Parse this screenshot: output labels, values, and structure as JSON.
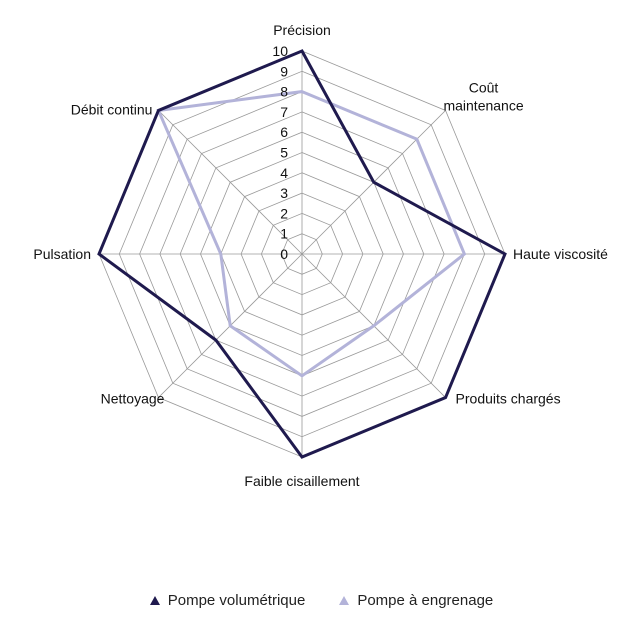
{
  "chart_data": {
    "type": "radar",
    "title": "",
    "categories": [
      "Précision",
      "Coût maintenance",
      "Haute viscosité",
      "Produits chargés",
      "Faible cisaillement",
      "Nettoyage",
      "Pulsation",
      "Débit continu"
    ],
    "category_lines": [
      [
        "Précision"
      ],
      [
        "Coût",
        "maintenance"
      ],
      [
        "Haute viscosité"
      ],
      [
        "Produits chargés"
      ],
      [
        "Faible cisaillement"
      ],
      [
        "Nettoyage"
      ],
      [
        "Pulsation"
      ],
      [
        "Débit continu"
      ]
    ],
    "rlim": [
      0,
      10
    ],
    "ticks": [
      "0",
      "1",
      "2",
      "3",
      "4",
      "5",
      "6",
      "7",
      "8",
      "9",
      "10"
    ],
    "grid": true,
    "legend_position": "bottom",
    "series": [
      {
        "name": "Pompe volumétrique",
        "color": "#1f1a4e",
        "values": [
          10,
          5,
          10,
          10,
          10,
          6,
          10,
          10
        ]
      },
      {
        "name": "Pompe à engrenage",
        "color": "#b3b3d9",
        "values": [
          8,
          8,
          8,
          5,
          6,
          5,
          4,
          10
        ]
      }
    ]
  }
}
